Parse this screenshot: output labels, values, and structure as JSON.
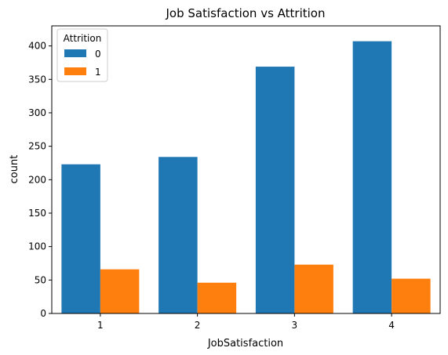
{
  "chart_data": {
    "type": "bar",
    "title": "Job Satisfaction vs Attrition",
    "xlabel": "JobSatisfaction",
    "ylabel": "count",
    "categories": [
      "1",
      "2",
      "3",
      "4"
    ],
    "ylim": [
      0,
      430
    ],
    "yticks": [
      0,
      50,
      100,
      150,
      200,
      250,
      300,
      350,
      400
    ],
    "grid": false,
    "legend": {
      "title": "Attrition",
      "placement": "top-left"
    },
    "series": [
      {
        "name": "0",
        "color": "#1f77b4",
        "values": [
          223,
          234,
          369,
          407
        ]
      },
      {
        "name": "1",
        "color": "#ff7f0e",
        "values": [
          66,
          46,
          73,
          52
        ]
      }
    ]
  }
}
